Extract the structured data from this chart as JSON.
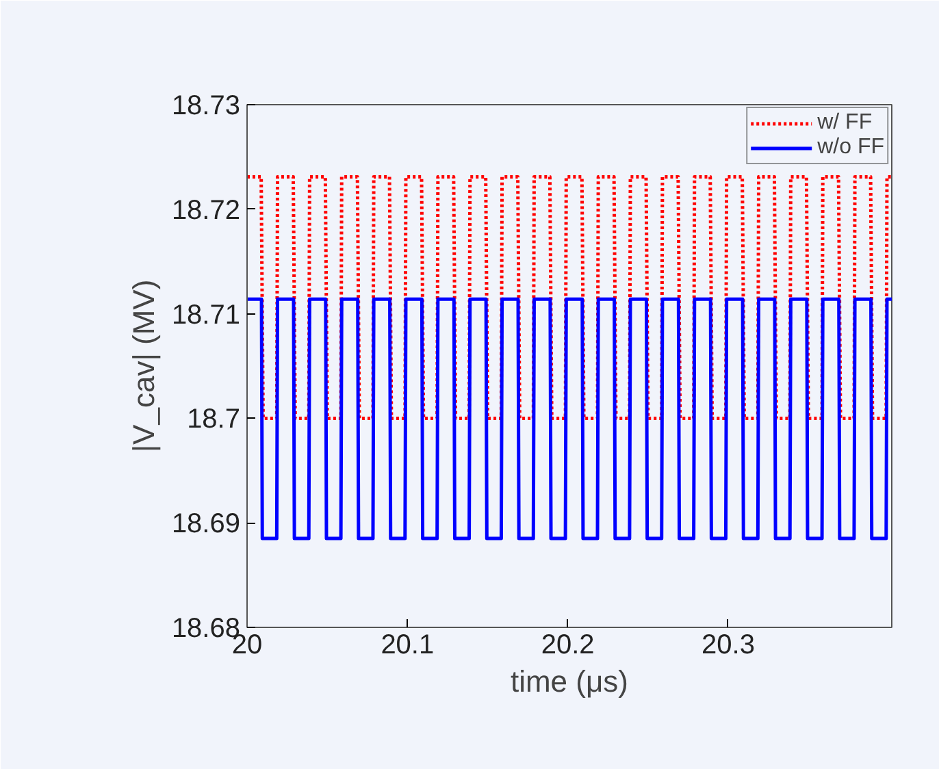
{
  "chart_data": {
    "type": "line",
    "xlabel": "time (μs)",
    "ylabel": "|V_cav| (MV)",
    "xlim": [
      20,
      20.402
    ],
    "xticks": [
      20,
      20.1,
      20.2,
      20.3
    ],
    "ylim": [
      18.68,
      18.73
    ],
    "yticks": [
      18.68,
      18.69,
      18.7,
      18.71,
      18.72,
      18.73
    ],
    "grid": false,
    "legend": "top right",
    "marker": "none",
    "series": [
      {
        "name": "w/ FF",
        "color": "#ff0000",
        "line_style": "dotted",
        "x": [
          20,
          20.0088,
          20.01,
          20.0185,
          20.019,
          20.0288,
          20.03,
          20.0385,
          20.039,
          20.0488,
          20.05,
          20.0585,
          20.059,
          20.0688,
          20.07,
          20.0785,
          20.079,
          20.0888,
          20.09,
          20.0985,
          20.099,
          20.1088,
          20.11,
          20.1185,
          20.119,
          20.1288,
          20.13,
          20.1385,
          20.139,
          20.1488,
          20.15,
          20.1585,
          20.159,
          20.1688,
          20.17,
          20.1785,
          20.179,
          20.1888,
          20.19,
          20.1985,
          20.199,
          20.2088,
          20.21,
          20.2185,
          20.219,
          20.2288,
          20.23,
          20.2385,
          20.239,
          20.2488,
          20.25,
          20.2585,
          20.259,
          20.2688,
          20.27,
          20.2785,
          20.279,
          20.2888,
          20.29,
          20.2985,
          20.299,
          20.3088,
          20.31,
          20.3185,
          20.319,
          20.3288,
          20.33,
          20.3385,
          20.339,
          20.3488,
          20.35,
          20.3585,
          20.359,
          20.3688,
          20.37,
          20.3785,
          20.379,
          20.3888,
          20.39,
          20.3985,
          20.399,
          20.402
        ],
        "values": [
          18.7231,
          18.7231,
          18.7,
          18.7,
          18.7231,
          18.7231,
          18.7,
          18.7,
          18.7231,
          18.7231,
          18.7,
          18.7,
          18.7231,
          18.7231,
          18.7,
          18.7,
          18.7231,
          18.7231,
          18.7,
          18.7,
          18.7231,
          18.7231,
          18.7,
          18.7,
          18.7231,
          18.7231,
          18.7,
          18.7,
          18.7231,
          18.7231,
          18.7,
          18.7,
          18.7231,
          18.7231,
          18.7,
          18.7,
          18.7231,
          18.7231,
          18.7,
          18.7,
          18.7231,
          18.7231,
          18.7,
          18.7,
          18.7231,
          18.7231,
          18.7,
          18.7,
          18.7231,
          18.7231,
          18.7,
          18.7,
          18.7231,
          18.7231,
          18.7,
          18.7,
          18.7231,
          18.7231,
          18.7,
          18.7,
          18.7231,
          18.7231,
          18.7,
          18.7,
          18.7231,
          18.7231,
          18.7,
          18.7,
          18.7231,
          18.7231,
          18.7,
          18.7,
          18.7231,
          18.7231,
          18.7,
          18.7,
          18.7231,
          18.7231,
          18.7,
          18.7,
          18.7231,
          18.7231
        ]
      },
      {
        "name": "w/o FF",
        "color": "#0000ff",
        "line_style": "solid",
        "x": [
          20,
          20.009,
          20.0095,
          20.0185,
          20.019,
          20.029,
          20.0295,
          20.0385,
          20.039,
          20.049,
          20.0495,
          20.0585,
          20.059,
          20.069,
          20.0695,
          20.0785,
          20.079,
          20.089,
          20.0895,
          20.0985,
          20.099,
          20.109,
          20.1095,
          20.1185,
          20.119,
          20.129,
          20.1295,
          20.1385,
          20.139,
          20.149,
          20.1495,
          20.1585,
          20.159,
          20.169,
          20.1695,
          20.1785,
          20.179,
          20.189,
          20.1895,
          20.1985,
          20.199,
          20.209,
          20.2095,
          20.2185,
          20.219,
          20.229,
          20.2295,
          20.2385,
          20.239,
          20.249,
          20.2495,
          20.2585,
          20.259,
          20.269,
          20.2695,
          20.2785,
          20.279,
          20.289,
          20.2895,
          20.2985,
          20.299,
          20.309,
          20.3095,
          20.3185,
          20.319,
          20.329,
          20.3295,
          20.3385,
          20.339,
          20.349,
          20.3495,
          20.3585,
          20.359,
          20.369,
          20.3695,
          20.3785,
          20.379,
          20.389,
          20.3895,
          20.3985,
          20.399,
          20.402
        ],
        "values": [
          18.7114,
          18.7114,
          18.6885,
          18.6885,
          18.7114,
          18.7114,
          18.6885,
          18.6885,
          18.7114,
          18.7114,
          18.6885,
          18.6885,
          18.7114,
          18.7114,
          18.6885,
          18.6885,
          18.7114,
          18.7114,
          18.6885,
          18.6885,
          18.7114,
          18.7114,
          18.6885,
          18.6885,
          18.7114,
          18.7114,
          18.6885,
          18.6885,
          18.7114,
          18.7114,
          18.6885,
          18.6885,
          18.7114,
          18.7114,
          18.6885,
          18.6885,
          18.7114,
          18.7114,
          18.6885,
          18.6885,
          18.7114,
          18.7114,
          18.6885,
          18.6885,
          18.7114,
          18.7114,
          18.6885,
          18.6885,
          18.7114,
          18.7114,
          18.6885,
          18.6885,
          18.7114,
          18.7114,
          18.6885,
          18.6885,
          18.7114,
          18.7114,
          18.6885,
          18.6885,
          18.7114,
          18.7114,
          18.6885,
          18.6885,
          18.7114,
          18.7114,
          18.6885,
          18.6885,
          18.7114,
          18.7114,
          18.6885,
          18.6885,
          18.7114,
          18.7114,
          18.6885,
          18.6885,
          18.7114,
          18.7114,
          18.6885,
          18.6885,
          18.7114,
          18.7114
        ]
      }
    ]
  }
}
